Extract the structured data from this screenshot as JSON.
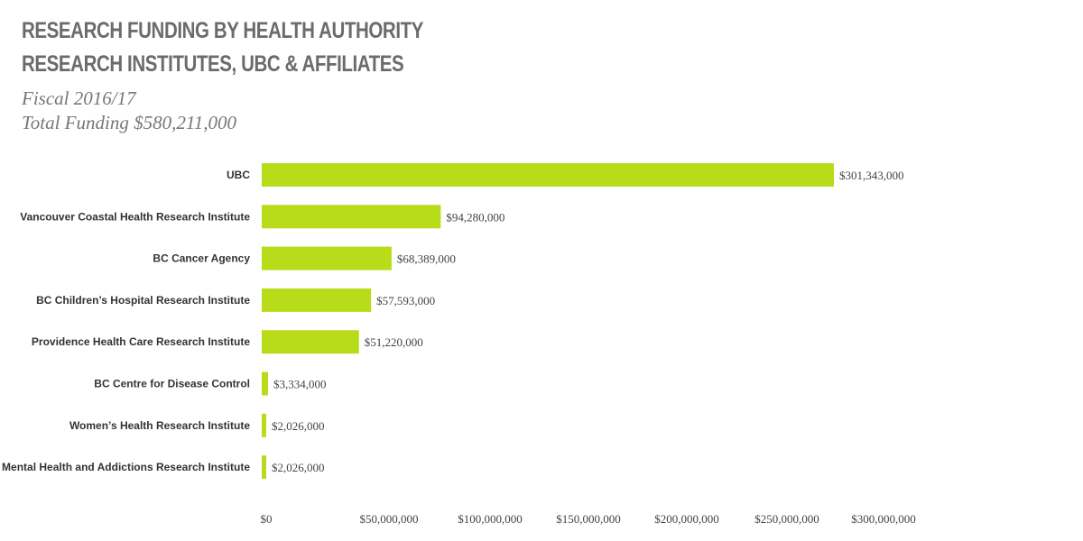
{
  "header": {
    "title_line1": "RESEARCH FUNDING BY HEALTH AUTHORITY",
    "title_line2": "RESEARCH INSTITUTES, UBC & AFFILIATES",
    "subtitle_line1": "Fiscal 2016/17",
    "subtitle_line2": "Total Funding $580,211,000"
  },
  "colors": {
    "bar": "#b8dc1a",
    "title": "#6b6b6b",
    "subtitle": "#777777"
  },
  "chart_data": {
    "type": "bar",
    "orientation": "horizontal",
    "title": "RESEARCH FUNDING BY HEALTH AUTHORITY RESEARCH INSTITUTES, UBC & AFFILIATES",
    "subtitle": "Fiscal 2016/17 Total Funding $580,211,000",
    "xlabel": "",
    "ylabel": "",
    "xlim": [
      0,
      300000000
    ],
    "grid": false,
    "legend": "none",
    "categories": [
      "UBC",
      "Vancouver Coastal Health Research Institute",
      "BC Cancer Agency",
      "BC Children’s Hospital Research Institute",
      "Providence Health Care Research Institute",
      "BC Centre for Disease Control",
      "Women’s Health Research Institute",
      "BC Mental Health and Addictions Research Institute"
    ],
    "values": [
      301343000,
      94280000,
      68389000,
      57593000,
      51220000,
      3334000,
      2026000,
      2026000
    ],
    "value_labels": [
      "$301,343,000",
      "$94,280,000",
      "$68,389,000",
      "$57,593,000",
      "$51,220,000",
      "$3,334,000",
      "$2,026,000",
      "$2,026,000"
    ],
    "x_ticks": [
      {
        "value": 0,
        "label": "$0"
      },
      {
        "value": 50000000,
        "label": "$50,000,000"
      },
      {
        "value": 100000000,
        "label": "$100,000,000"
      },
      {
        "value": 150000000,
        "label": "$150,000,000"
      },
      {
        "value": 200000000,
        "label": "$200,000,000"
      },
      {
        "value": 250000000,
        "label": "$250,000,000"
      },
      {
        "value": 300000000,
        "label": "$300,000,000"
      }
    ]
  }
}
